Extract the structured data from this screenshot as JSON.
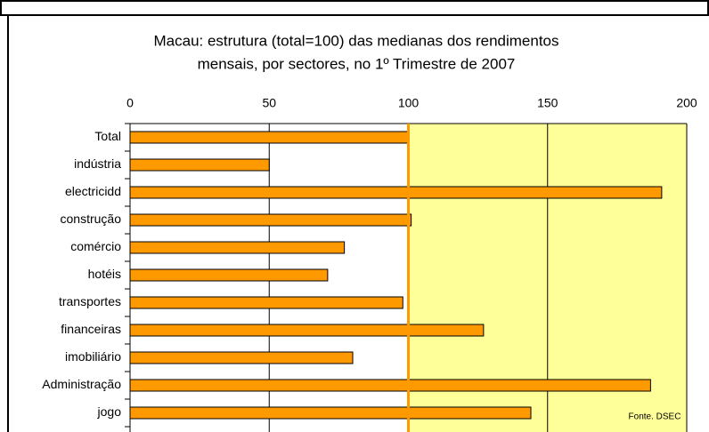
{
  "chart_data": {
    "type": "bar",
    "orientation": "horizontal",
    "title": [
      "Macau: estrutura (total=100) das medianas dos rendimentos",
      "mensais, por sectores, no 1º Trimestre de 2007"
    ],
    "categories": [
      "Total",
      "indústria",
      "electricidd",
      "construção",
      "comércio",
      "hotéis",
      "transportes",
      "financeiras",
      "imobiliário",
      "Administração",
      "jogo"
    ],
    "values": [
      100,
      50,
      191,
      101,
      77,
      71,
      98,
      127,
      80,
      187,
      144
    ],
    "color": "#ff9900",
    "xlim": [
      0,
      200
    ],
    "xticks": [
      0,
      50,
      100,
      150,
      200
    ],
    "grid": true,
    "reference_line": 100,
    "reference_color": "#ff9900",
    "annotation": "Fonte. DSEC"
  }
}
